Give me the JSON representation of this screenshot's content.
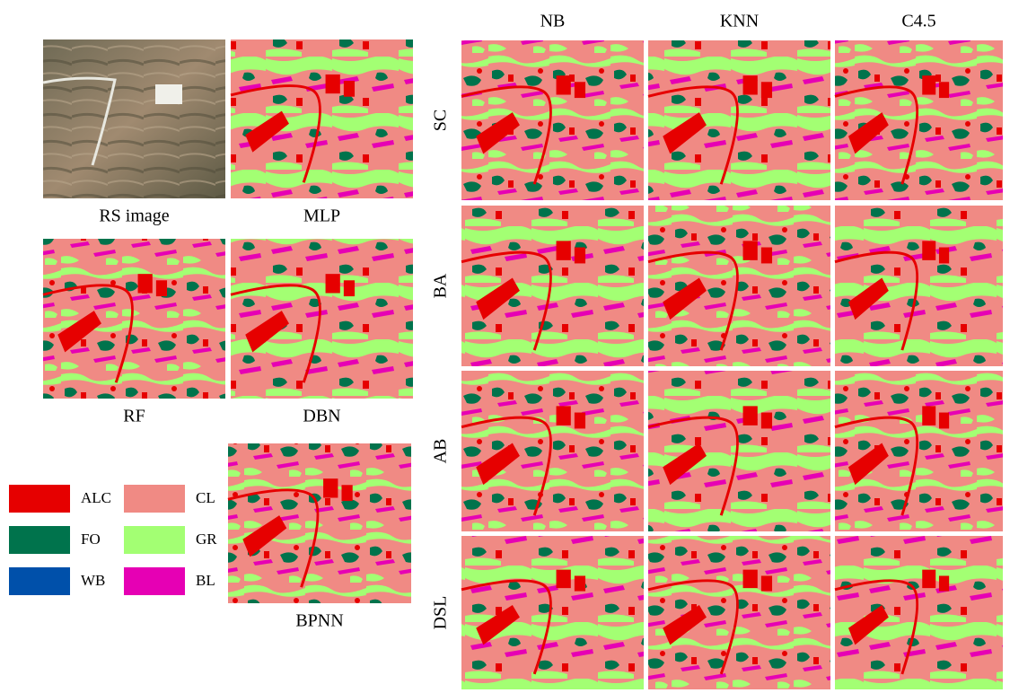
{
  "panels": [
    {
      "label": "RS image"
    },
    {
      "label": "MLP"
    },
    {
      "label": "RF"
    },
    {
      "label": "DBN"
    },
    {
      "label": "BPNN"
    }
  ],
  "grid": {
    "columns": [
      "NB",
      "KNN",
      "C4.5"
    ],
    "rows": [
      "SC",
      "BA",
      "AB",
      "DSL"
    ]
  },
  "legend": [
    {
      "name": "ALC",
      "color": "#e60000"
    },
    {
      "name": "FO",
      "color": "#00734c"
    },
    {
      "name": "WB",
      "color": "#0050aa"
    },
    {
      "name": "CL",
      "color": "#f08a84"
    },
    {
      "name": "GR",
      "color": "#a3ff73"
    },
    {
      "name": "BL",
      "color": "#e600b4"
    }
  ]
}
